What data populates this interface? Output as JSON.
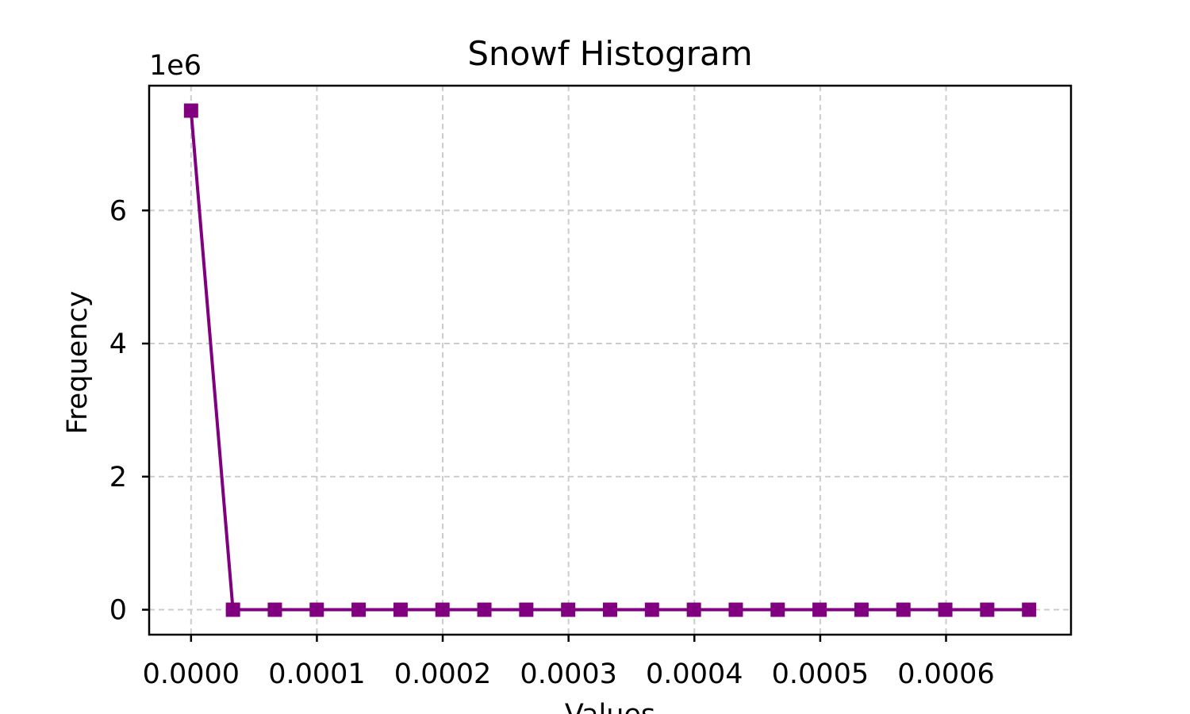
{
  "chart_data": {
    "type": "line",
    "title": "Snowf Histogram",
    "xlabel": "Values",
    "ylabel": "Frequency",
    "y_offset_label": "1e6",
    "y_scale_factor": 1000000,
    "xlim": [
      -3.33e-05,
      0.0006993
    ],
    "ylim": [
      -0.375,
      7.875
    ],
    "x_ticks": [
      0.0,
      0.0001,
      0.0002,
      0.0003,
      0.0004,
      0.0005,
      0.0006
    ],
    "x_tick_labels": [
      "0.0000",
      "0.0001",
      "0.0002",
      "0.0003",
      "0.0004",
      "0.0005",
      "0.0006"
    ],
    "y_ticks": [
      0,
      2,
      4,
      6
    ],
    "y_tick_labels": [
      "0",
      "2",
      "4",
      "6"
    ],
    "grid": true,
    "colors": {
      "series": "#800080",
      "grid": "#cccccc",
      "axis": "#000000"
    },
    "series": [
      {
        "marker": "square",
        "x": [
          0.0,
          3.33e-05,
          6.66e-05,
          9.99e-05,
          0.0001332,
          0.0001665,
          0.0001998,
          0.0002331,
          0.0002664,
          0.0002997,
          0.000333,
          0.0003663,
          0.0003996,
          0.0004329,
          0.0004662,
          0.0004995,
          0.0005328,
          0.0005661,
          0.0005994,
          0.0006327,
          0.000666
        ],
        "y": [
          7.5,
          0.0002,
          5e-05,
          3e-05,
          2e-05,
          1e-05,
          1e-05,
          1e-05,
          1e-05,
          1e-05,
          1e-05,
          1e-05,
          1e-05,
          1e-05,
          1e-05,
          1e-05,
          1e-05,
          1e-05,
          1e-05,
          1e-05,
          1e-05
        ]
      }
    ]
  }
}
